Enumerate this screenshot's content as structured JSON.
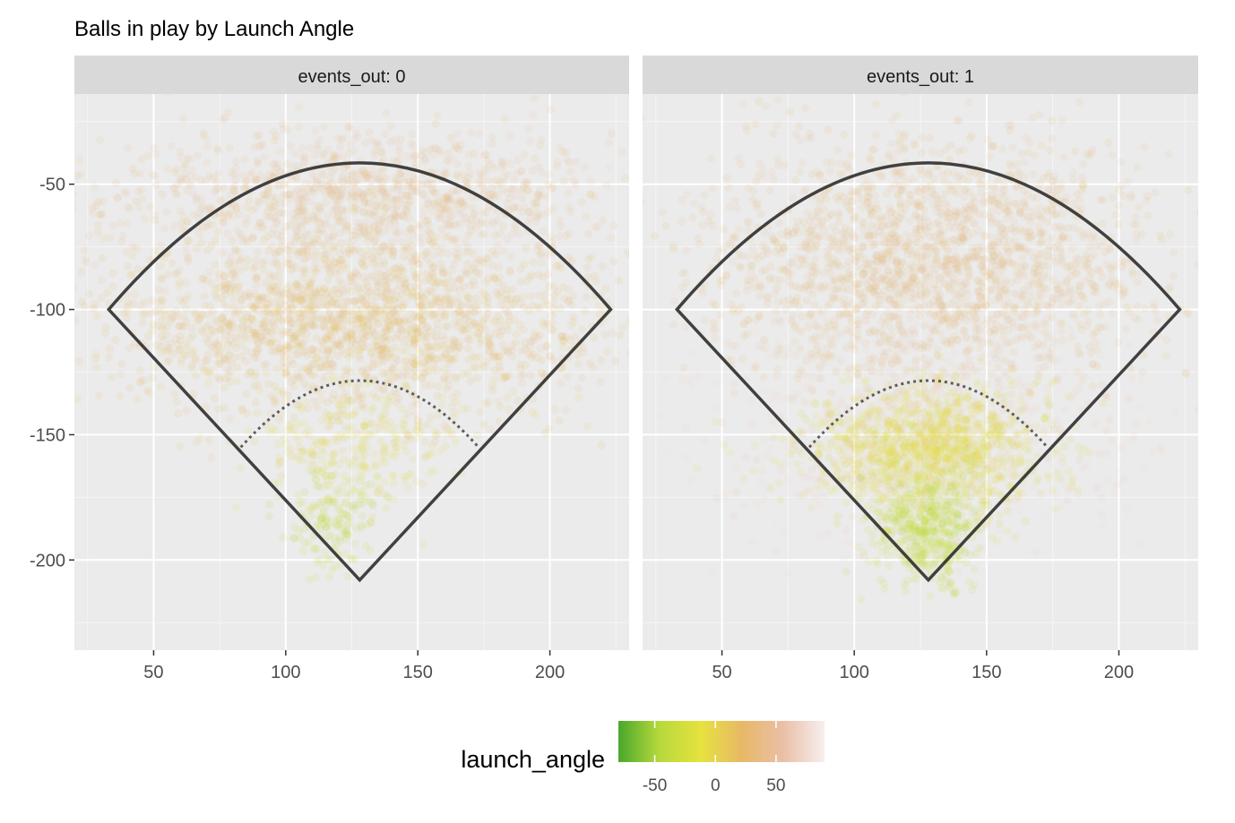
{
  "chart_data": {
    "type": "scatter",
    "title": "Balls in play by Launch Angle",
    "xlabel": "",
    "ylabel": "",
    "xlim": [
      20,
      230
    ],
    "ylim": [
      -236,
      -14
    ],
    "x_ticks": [
      50,
      100,
      150,
      200
    ],
    "y_ticks": [
      -50,
      -100,
      -150,
      -200
    ],
    "grid": true,
    "facet_variable": "events_out",
    "facets": [
      {
        "label": "events_out: 0",
        "clusters": [
          {
            "cx": 128,
            "cy": -55,
            "sx": 48,
            "sy": 14,
            "launch_angle": 40,
            "n": 1100
          },
          {
            "cx": 128,
            "cy": -105,
            "sx": 48,
            "sy": 18,
            "launch_angle": 22,
            "n": 1900
          },
          {
            "cx": 125,
            "cy": -155,
            "sx": 18,
            "sy": 12,
            "launch_angle": -5,
            "n": 260
          },
          {
            "cx": 118,
            "cy": -183,
            "sx": 10,
            "sy": 10,
            "launch_angle": -35,
            "n": 160
          }
        ]
      },
      {
        "label": "events_out: 1",
        "clusters": [
          {
            "cx": 128,
            "cy": -80,
            "sx": 42,
            "sy": 24,
            "launch_angle": 35,
            "n": 2000
          },
          {
            "cx": 128,
            "cy": -145,
            "sx": 40,
            "sy": 22,
            "launch_angle": 70,
            "n": 800
          },
          {
            "cx": 128,
            "cy": -155,
            "sx": 22,
            "sy": 12,
            "launch_angle": -10,
            "n": 1200
          },
          {
            "cx": 128,
            "cy": -188,
            "sx": 10,
            "sy": 10,
            "launch_angle": -35,
            "n": 500
          }
        ]
      }
    ],
    "field_outline": {
      "home": [
        128,
        -208
      ],
      "left_foul": [
        33,
        -100
      ],
      "right_foul": [
        223,
        -100
      ],
      "outfield_top": [
        128,
        -40
      ],
      "infield_arc_top": [
        128,
        -127
      ],
      "infield_arc_left": [
        83,
        -155
      ],
      "infield_arc_right": [
        173,
        -155
      ]
    },
    "legend": {
      "title": "launch_angle",
      "position": "bottom",
      "ticks": [
        -50,
        0,
        50
      ],
      "range": [
        -80,
        90
      ],
      "colors": [
        "#4aa82b",
        "#b7d93c",
        "#e6e23e",
        "#e8b866",
        "#eabfa8",
        "#f7efef"
      ]
    }
  }
}
